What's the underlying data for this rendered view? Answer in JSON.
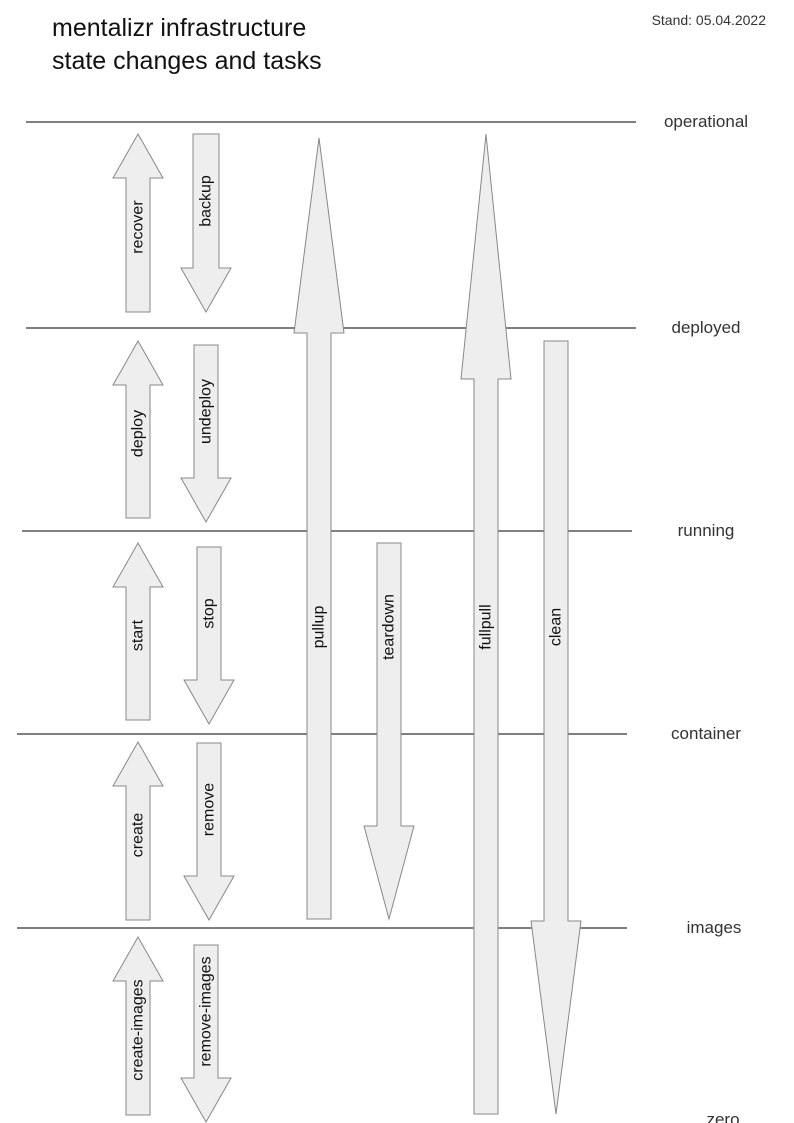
{
  "title": {
    "line1": "mentalizr infrastructure",
    "line2": "state changes and tasks"
  },
  "stand": "Stand: 05.04.2022",
  "levels": [
    "operational",
    "deployed",
    "running",
    "container",
    "images",
    "zero"
  ],
  "tasks": [
    {
      "name": "recover",
      "direction": "up",
      "from": "deployed",
      "to": "operational"
    },
    {
      "name": "backup",
      "direction": "down",
      "from": "operational",
      "to": "deployed"
    },
    {
      "name": "deploy",
      "direction": "up",
      "from": "running",
      "to": "deployed"
    },
    {
      "name": "undeploy",
      "direction": "down",
      "from": "deployed",
      "to": "running"
    },
    {
      "name": "start",
      "direction": "up",
      "from": "container",
      "to": "running"
    },
    {
      "name": "stop",
      "direction": "down",
      "from": "running",
      "to": "container"
    },
    {
      "name": "create",
      "direction": "up",
      "from": "images",
      "to": "container"
    },
    {
      "name": "remove",
      "direction": "down",
      "from": "container",
      "to": "images"
    },
    {
      "name": "create-images",
      "direction": "up",
      "from": "zero",
      "to": "images"
    },
    {
      "name": "remove-images",
      "direction": "down",
      "from": "images",
      "to": "zero"
    },
    {
      "name": "pullup",
      "direction": "up",
      "from": "images",
      "to": "operational"
    },
    {
      "name": "teardown",
      "direction": "down",
      "from": "running",
      "to": "images"
    },
    {
      "name": "fullpull",
      "direction": "up",
      "from": "zero",
      "to": "operational"
    },
    {
      "name": "clean",
      "direction": "down",
      "from": "deployed",
      "to": "zero"
    }
  ],
  "colors": {
    "arrow_fill": "#eeeeee",
    "arrow_stroke": "#888888",
    "line": "#000000"
  }
}
